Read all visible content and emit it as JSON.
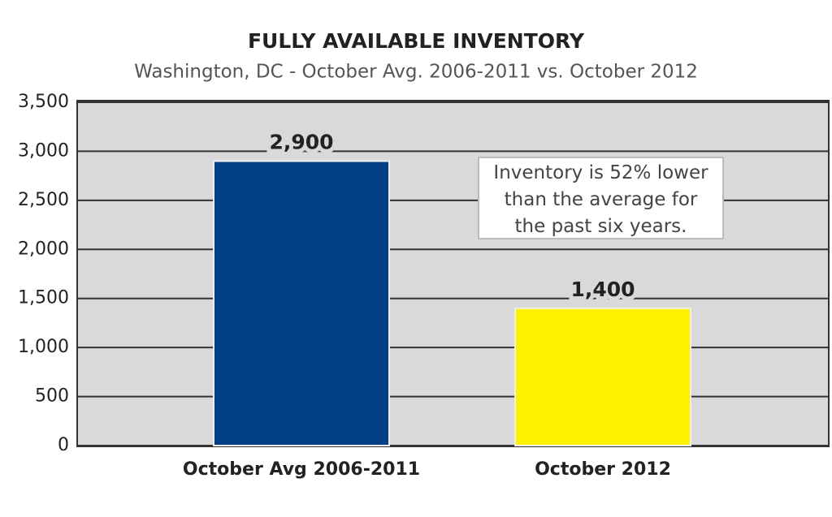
{
  "chart_data": {
    "type": "bar",
    "title": "FULLY AVAILABLE INVENTORY",
    "subtitle": "Washington, DC - October Avg. 2006-2011 vs. October 2012",
    "categories": [
      "October Avg 2006-2011",
      "October 2012"
    ],
    "values": [
      2900,
      1400
    ],
    "value_labels": [
      "2,900",
      "1,400"
    ],
    "colors": [
      "#033f85",
      "#fff200"
    ],
    "ylim": [
      0,
      3500
    ],
    "yticks": [
      0,
      500,
      {
        "value": 1000,
        "label": "1,000"
      },
      {
        "value": 1500,
        "label": "1,500"
      },
      {
        "value": 2000,
        "label": "2,000"
      },
      {
        "value": 2500,
        "label": "2,500"
      },
      {
        "value": 3000,
        "label": "3,000"
      },
      {
        "value": 3500,
        "label": "3,500"
      }
    ],
    "grid": true,
    "annotation": "Inventory is 52% lower than the average for the past six years."
  }
}
